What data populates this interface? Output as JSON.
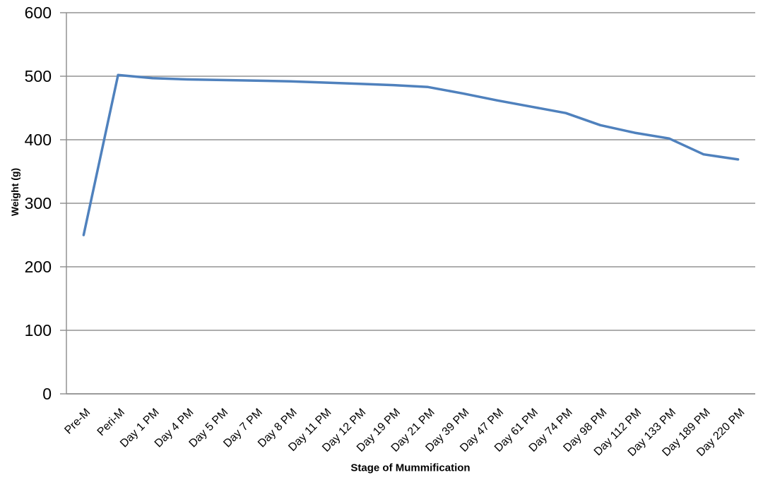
{
  "chart_data": {
    "type": "line",
    "title": "",
    "xlabel": "Stage of Mummification",
    "ylabel": "Weight (g)",
    "categories": [
      "Pre-M",
      "Peri-M",
      "Day 1 PM",
      "Day 4 PM",
      "Day 5 PM",
      "Day 7 PM",
      "Day 8 PM",
      "Day 11 PM",
      "Day 12 PM",
      "Day 19 PM",
      "Day 21 PM",
      "Day 39 PM",
      "Day 47 PM",
      "Day 61 PM",
      "Day 74 PM",
      "Day 98 PM",
      "Day 112 PM",
      "Day 133 PM",
      "Day 189 PM",
      "Day 220 PM"
    ],
    "series": [
      {
        "name": "Weight (g)",
        "values": [
          250,
          502,
          497,
          495,
          494,
          493,
          492,
          490,
          488,
          486,
          483,
          473,
          462,
          452,
          442,
          423,
          411,
          402,
          377,
          369
        ]
      }
    ],
    "ylim": [
      0,
      600
    ],
    "yticks": [
      0,
      100,
      200,
      300,
      400,
      500,
      600
    ],
    "grid": "horizontal-only",
    "legend": "none",
    "label_rotation": -45,
    "colors": {
      "line": "#4F81BD",
      "gridline": "#949494",
      "axis": "#8C8C8C",
      "tick_text": "#000000"
    }
  }
}
